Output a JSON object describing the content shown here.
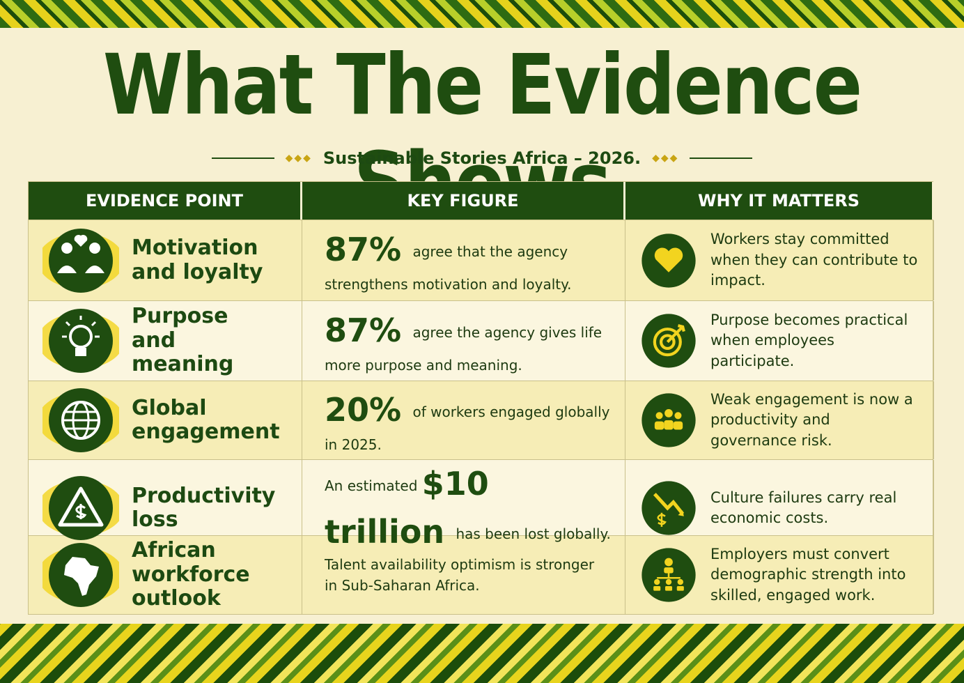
{
  "header": {
    "title": "What The Evidence Shows",
    "subtitle": "Sustainable Stories Africa – 2026."
  },
  "table": {
    "columns": [
      "EVIDENCE POINT",
      "KEY FIGURE",
      "WHY IT MATTERS"
    ],
    "rows": [
      {
        "point": "Motivation and loyalty",
        "figure": [
          {
            "text": "87%",
            "emphasis": true
          },
          {
            "text": "agree that the agency strengthens motivation and loyalty."
          }
        ],
        "why": "Workers stay committed when they can contribute to impact."
      },
      {
        "point": "Purpose and meaning",
        "figure": [
          {
            "text": "87%",
            "emphasis": true
          },
          {
            "text": "agree the agency gives life more purpose and meaning."
          }
        ],
        "why": "Purpose becomes practical when employees participate."
      },
      {
        "point": "Global engagement",
        "figure": [
          {
            "text": "20%",
            "emphasis": true
          },
          {
            "text": "of workers engaged globally in 2025."
          }
        ],
        "why": "Weak engagement is now a productivity and governance risk."
      },
      {
        "point": "Productivity loss",
        "figure": [
          {
            "text": "An estimated"
          },
          {
            "text": "$10 trillion",
            "emphasis": true
          },
          {
            "text": "has been lost globally."
          }
        ],
        "why": "Culture failures carry real economic costs."
      },
      {
        "point": "African workforce outlook",
        "figure": [
          {
            "text": "Talent availability optimism is stronger in Sub-Saharan Africa."
          }
        ],
        "why": "Employers must convert demographic strength into skilled, engaged work."
      }
    ]
  }
}
